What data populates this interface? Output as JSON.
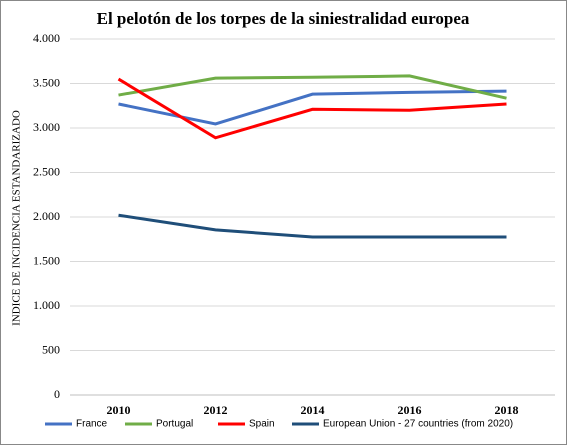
{
  "chart_data": {
    "type": "line",
    "title": "El pelotón de los torpes de la siniestralidad europea",
    "y_label": "INDICE DE INCIDENCIA ESTANDARIZADO",
    "categories": [
      "2010",
      "2012",
      "2014",
      "2016",
      "2018"
    ],
    "series": [
      {
        "name": "France",
        "color": "#4472c4",
        "values": [
          3270,
          3045,
          3380,
          3400,
          3415
        ]
      },
      {
        "name": "Portugal",
        "color": "#70ad47",
        "values": [
          3370,
          3560,
          3570,
          3585,
          3335
        ]
      },
      {
        "name": "Spain",
        "color": "#ff0000",
        "values": [
          3550,
          2890,
          3210,
          3200,
          3270
        ]
      },
      {
        "name": "European Union - 27 countries (from 2020)",
        "color": "#1f4e79",
        "values": [
          2020,
          1855,
          1775,
          1775,
          1775
        ]
      }
    ],
    "ylim": [
      0,
      4000
    ],
    "yticks": [
      0,
      500,
      {
        "value": 1000,
        "label": "1.000"
      },
      {
        "value": 1500,
        "label": "1.500"
      },
      {
        "value": 2000,
        "label": "2.000"
      },
      {
        "value": 2500,
        "label": "2.500"
      },
      {
        "value": 3000,
        "label": "3.000"
      },
      {
        "value": 3500,
        "label": "3.500"
      },
      {
        "value": 4000,
        "label": "4.000"
      }
    ],
    "grid": true
  }
}
